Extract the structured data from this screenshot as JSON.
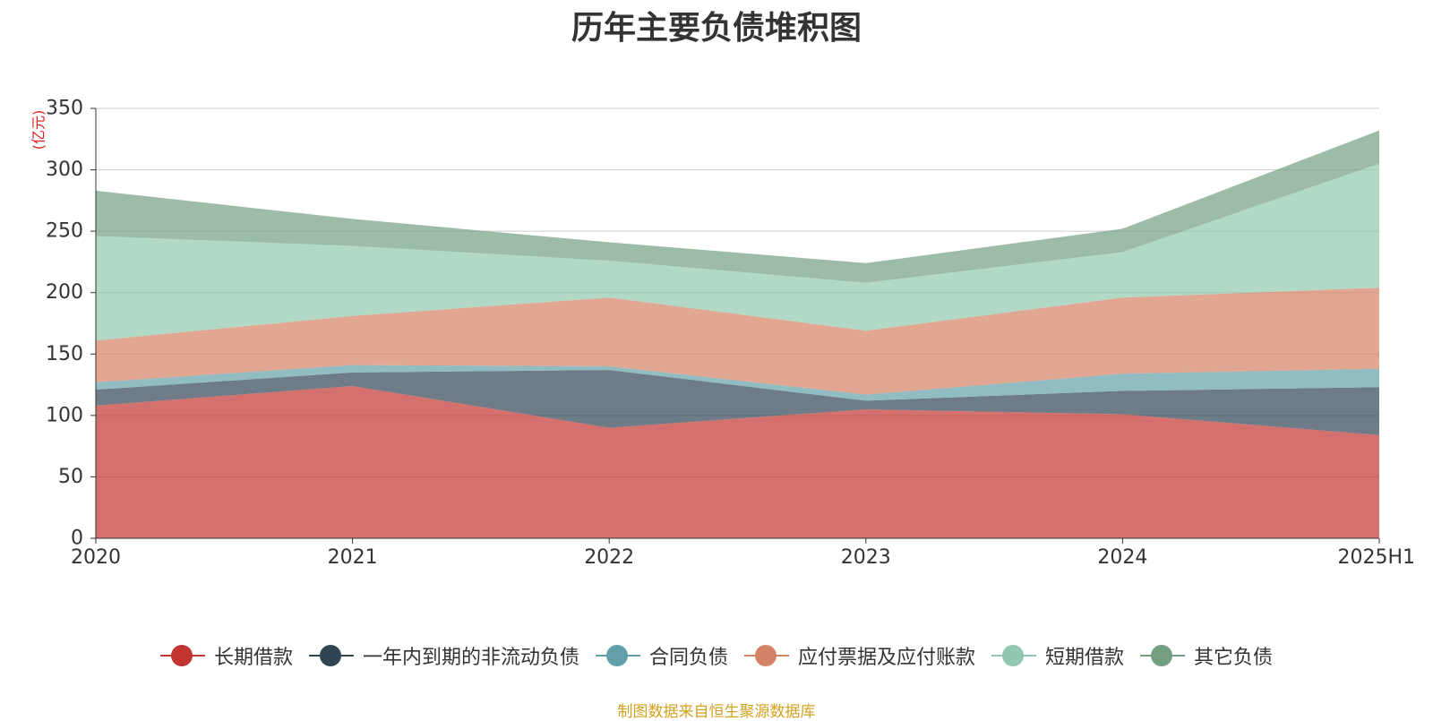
{
  "chart_data": {
    "type": "area",
    "stacked": true,
    "title": "历年主要负债堆积图",
    "ylabel": "(亿元)",
    "xlabel": "",
    "categories": [
      "2020",
      "2021",
      "2022",
      "2023",
      "2024",
      "2025H1"
    ],
    "ylim": [
      0,
      350
    ],
    "yticks": [
      "0",
      "50",
      "100",
      "150",
      "200",
      "250",
      "300",
      "350"
    ],
    "grid": true,
    "legend_position": "bottom",
    "series": [
      {
        "name": "长期借款",
        "color": "#c23531",
        "values": [
          108,
          124,
          90,
          105,
          101,
          84
        ]
      },
      {
        "name": "一年内到期的非流动负债",
        "color": "#2f4554",
        "values": [
          13,
          11,
          47,
          7,
          19,
          39
        ]
      },
      {
        "name": "合同负债",
        "color": "#61a0a8",
        "values": [
          6,
          6,
          3,
          5,
          14,
          15
        ]
      },
      {
        "name": "应付票据及应付账款",
        "color": "#d48265",
        "values": [
          34,
          40,
          56,
          52,
          62,
          66
        ]
      },
      {
        "name": "短期借款",
        "color": "#91c7ae",
        "values": [
          85,
          57,
          30,
          39,
          37,
          101
        ]
      },
      {
        "name": "其它负债",
        "color": "#749f83",
        "values": [
          37,
          22,
          15,
          16,
          19,
          27
        ]
      }
    ]
  },
  "source_note": "制图数据来自恒生聚源数据库"
}
